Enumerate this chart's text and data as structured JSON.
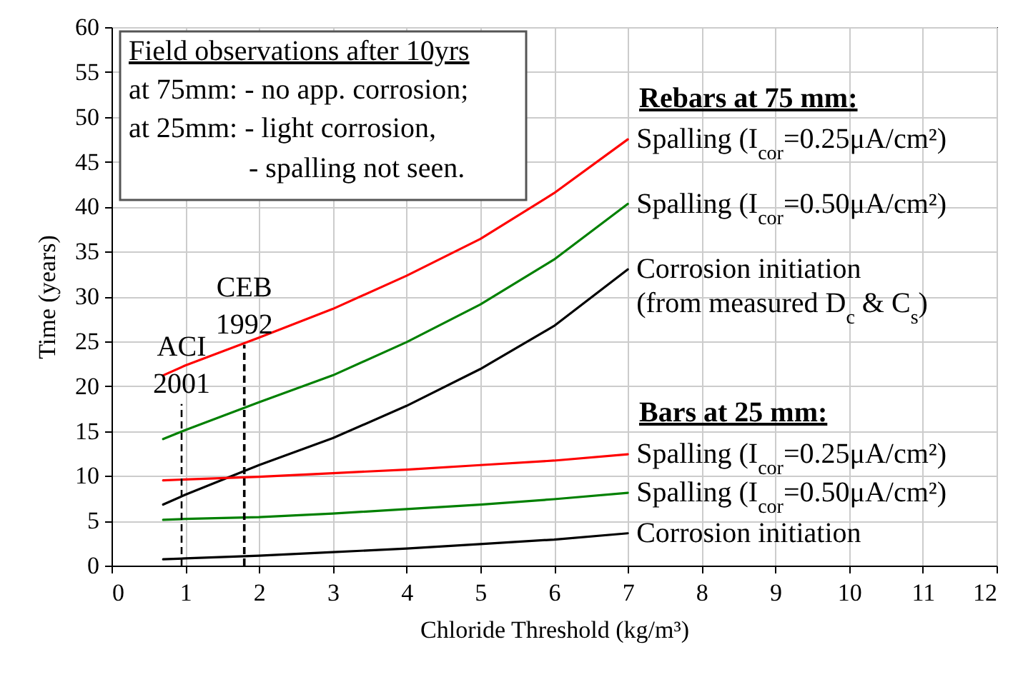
{
  "chart_data": {
    "type": "line",
    "xlabel": "Chloride Threshold (kg/m³)",
    "ylabel": "Time (years)",
    "x": [
      0.7,
      1,
      2,
      3,
      4,
      5,
      6,
      7
    ],
    "series": [
      {
        "name": "Spalling (I$_{cor}$=0.25μA/cm²)",
        "color": "#ff0000",
        "values": [
          21.2,
          22.3,
          25.4,
          28.6,
          32.3,
          36.4,
          41.5,
          47.5
        ]
      },
      {
        "name": "Spalling (I$_{cor}$=0.50μA/cm²)",
        "color": "#008000",
        "values": [
          14.1,
          15.1,
          18.2,
          21.2,
          24.9,
          29.1,
          34.1,
          40.3
        ]
      },
      {
        "name": "Corrosion initiation\n(from measured D$_{c}$ & C$_{s}$)",
        "color": "#000000",
        "values": [
          6.8,
          7.9,
          11.2,
          14.2,
          17.8,
          21.9,
          26.7,
          33.0
        ]
      },
      {
        "name": "Spalling (I$_{cor}$=0.25μA/cm²)",
        "color": "#ff0000",
        "values": [
          9.5,
          9.6,
          9.9,
          10.3,
          10.7,
          11.2,
          11.7,
          12.4
        ]
      },
      {
        "name": "Spalling (I$_{cor}$=0.50μA/cm²)",
        "color": "#008000",
        "values": [
          5.1,
          5.2,
          5.4,
          5.8,
          6.3,
          6.8,
          7.4,
          8.1
        ]
      },
      {
        "name": "Corrosion initiation",
        "color": "#000000",
        "values": [
          0.7,
          0.8,
          1.1,
          1.5,
          1.9,
          2.4,
          2.9,
          3.6
        ]
      }
    ],
    "xlim": [
      0,
      12
    ],
    "xticks": [
      0,
      1,
      2,
      3,
      4,
      5,
      6,
      7,
      8,
      9,
      10,
      11,
      12
    ],
    "ylim": [
      0,
      60
    ],
    "yticks": [
      0,
      5,
      10,
      15,
      20,
      25,
      30,
      35,
      40,
      45,
      50,
      55,
      60
    ],
    "grid": true,
    "line_style": "solid",
    "ref_lines": [
      {
        "axis": "x",
        "value": 0.95,
        "label": "ACI\n2001",
        "color": "#000000",
        "line_style": "dashed"
      },
      {
        "axis": "x",
        "value": 1.8,
        "label": "CEB\n1992",
        "color": "#000000",
        "line_style": "dashed"
      }
    ],
    "annotations": [
      "Field observations after 10yrs",
      "at 75mm: - no app. corrosion;",
      "at 25mm: - light corrosion,",
      "- spalling not seen.",
      "Rebars at 75 mm:",
      "Bars at 25 mm:"
    ]
  }
}
